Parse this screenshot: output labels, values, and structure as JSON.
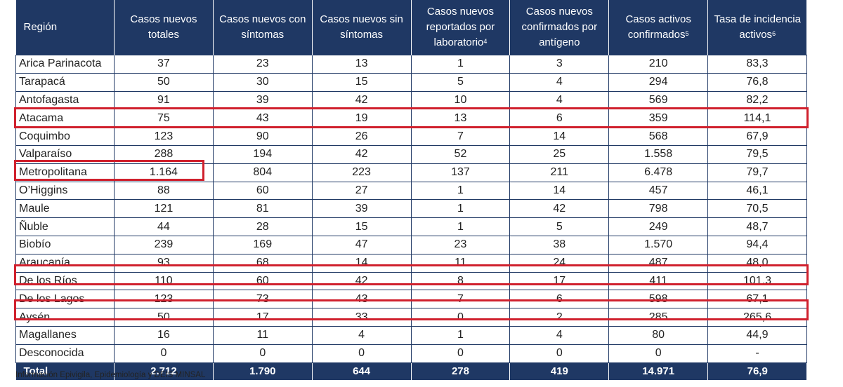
{
  "table": {
    "headers": [
      {
        "text": "Región",
        "sup": ""
      },
      {
        "text": "Casos nuevos totales",
        "sup": ""
      },
      {
        "text": "Casos nuevos con síntomas",
        "sup": ""
      },
      {
        "text": "Casos nuevos sin síntomas",
        "sup": ""
      },
      {
        "text": "Casos nuevos reportados por laboratorio",
        "sup": "4"
      },
      {
        "text": "Casos nuevos confirmados por antígeno",
        "sup": ""
      },
      {
        "text": "Casos activos confirmados",
        "sup": "5"
      },
      {
        "text": "Tasa de incidencia activos",
        "sup": "6"
      }
    ],
    "rows": [
      [
        "Arica Parinacota",
        "37",
        "23",
        "13",
        "1",
        "3",
        "210",
        "83,3"
      ],
      [
        "Tarapacá",
        "50",
        "30",
        "15",
        "5",
        "4",
        "294",
        "76,8"
      ],
      [
        "Antofagasta",
        "91",
        "39",
        "42",
        "10",
        "4",
        "569",
        "82,2"
      ],
      [
        "Atacama",
        "75",
        "43",
        "19",
        "13",
        "6",
        "359",
        "114,1"
      ],
      [
        "Coquimbo",
        "123",
        "90",
        "26",
        "7",
        "14",
        "568",
        "67,9"
      ],
      [
        "Valparaíso",
        "288",
        "194",
        "42",
        "52",
        "25",
        "1.558",
        "79,5"
      ],
      [
        "Metropolitana",
        "1.164",
        "804",
        "223",
        "137",
        "211",
        "6.478",
        "79,7"
      ],
      [
        "O’Higgins",
        "88",
        "60",
        "27",
        "1",
        "14",
        "457",
        "46,1"
      ],
      [
        "Maule",
        "121",
        "81",
        "39",
        "1",
        "42",
        "798",
        "70,5"
      ],
      [
        "Ñuble",
        "44",
        "28",
        "15",
        "1",
        "5",
        "249",
        "48,7"
      ],
      [
        "Biobío",
        "239",
        "169",
        "47",
        "23",
        "38",
        "1.570",
        "94,4"
      ],
      [
        "Araucanía",
        "93",
        "68",
        "14",
        "11",
        "24",
        "487",
        "48,0"
      ],
      [
        "De los Ríos",
        "110",
        "60",
        "42",
        "8",
        "17",
        "411",
        "101,3"
      ],
      [
        "De los Lagos",
        "123",
        "73",
        "43",
        "7",
        "6",
        "598",
        "67,1"
      ],
      [
        "Aysén",
        "50",
        "17",
        "33",
        "0",
        "2",
        "285",
        "265,6"
      ],
      [
        "Magallanes",
        "16",
        "11",
        "4",
        "1",
        "4",
        "80",
        "44,9"
      ],
      [
        "Desconocida",
        "0",
        "0",
        "0",
        "0",
        "0",
        "0",
        "-"
      ]
    ],
    "total": [
      "Total",
      "2.712",
      "1.790",
      "644",
      "278",
      "419",
      "14.971",
      "76,9"
    ]
  },
  "highlight_color": "#d0202d",
  "header_color": "#1f3864",
  "source_note": "Información Epivigila, Epidemiología y DEIS MINSAL"
}
